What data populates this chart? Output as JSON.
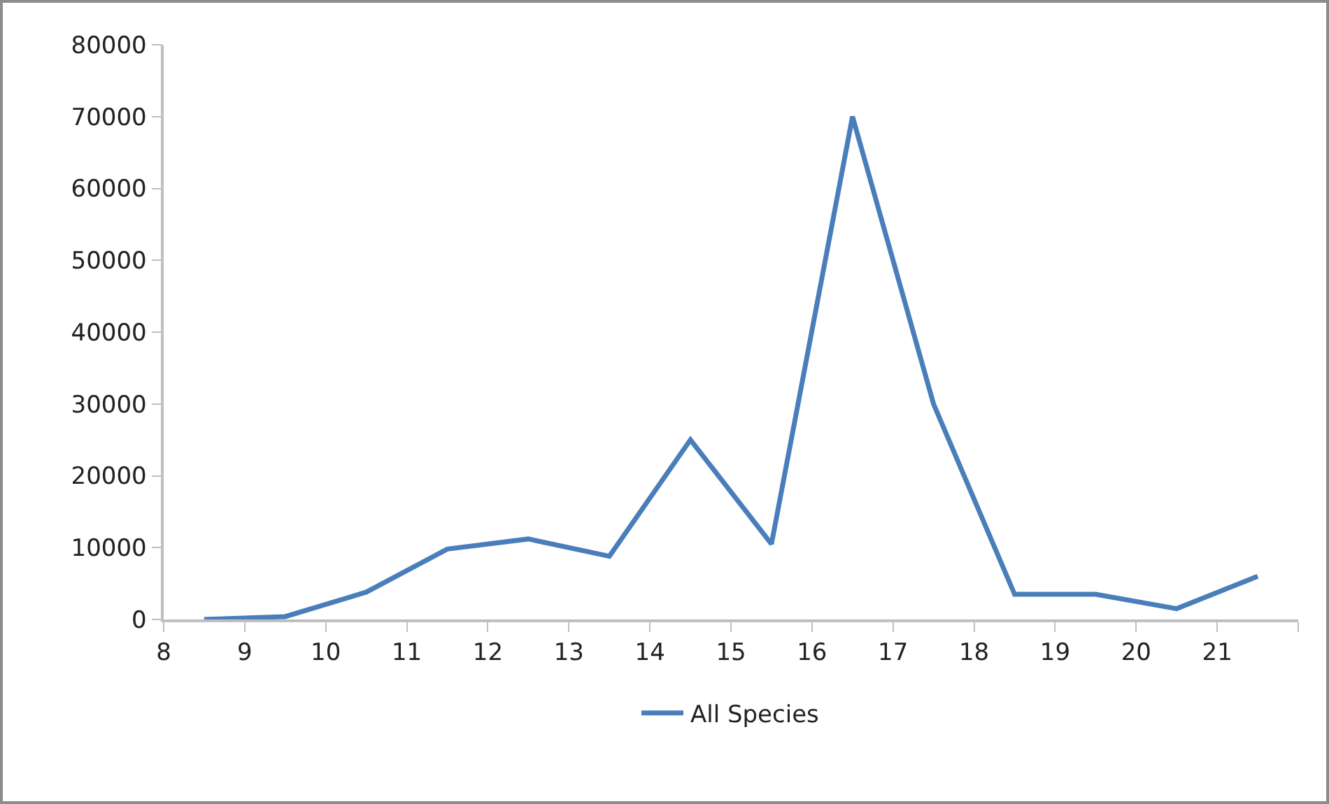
{
  "chart_data": {
    "type": "line",
    "x": [
      8.5,
      9.5,
      10.5,
      11.5,
      12.5,
      13.5,
      14.5,
      15.5,
      16.5,
      17.5,
      18.5,
      19.5,
      20.5,
      21.5
    ],
    "series": [
      {
        "name": "All Species",
        "color": "#4a7ebb",
        "values": [
          0,
          400,
          3800,
          9800,
          11200,
          8800,
          25000,
          10500,
          70000,
          30000,
          3500,
          3500,
          1500,
          6000
        ]
      }
    ],
    "xlim": [
      8,
      22
    ],
    "xticks": [
      8,
      9,
      10,
      11,
      12,
      13,
      14,
      15,
      16,
      17,
      18,
      19,
      20,
      21,
      {
        "value": 22,
        "label": null
      }
    ],
    "ylim": [
      0,
      80000
    ],
    "yticks": [
      0,
      10000,
      20000,
      30000,
      40000,
      50000,
      60000,
      70000,
      80000
    ],
    "grid": false,
    "legend": "bottom",
    "marker": "none",
    "line_style": "solid"
  }
}
